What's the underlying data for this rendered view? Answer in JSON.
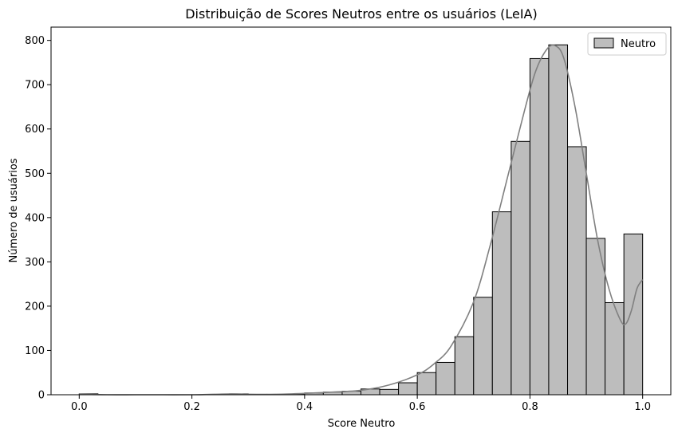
{
  "chart_data": {
    "type": "bar",
    "title": "Distribuição de Scores Neutros entre os usuários (LeIA)",
    "xlabel": "Score Neutro",
    "ylabel": "Número de usuários",
    "xlim": [
      -0.05,
      1.05
    ],
    "ylim": [
      0,
      830
    ],
    "xticks": [
      0.0,
      0.2,
      0.4,
      0.6,
      0.8,
      1.0
    ],
    "xtick_labels": [
      "0.0",
      "0.2",
      "0.4",
      "0.6",
      "0.8",
      "1.0"
    ],
    "yticks": [
      0,
      100,
      200,
      300,
      400,
      500,
      600,
      700,
      800
    ],
    "ytick_labels": [
      "0",
      "100",
      "200",
      "300",
      "400",
      "500",
      "600",
      "700",
      "800"
    ],
    "bin_edges": [
      0.0,
      0.0333,
      0.0667,
      0.1,
      0.1333,
      0.1667,
      0.2,
      0.2333,
      0.2667,
      0.3,
      0.3333,
      0.3667,
      0.4,
      0.4333,
      0.4667,
      0.5,
      0.5333,
      0.5667,
      0.6,
      0.6333,
      0.6667,
      0.7,
      0.7333,
      0.7667,
      0.8,
      0.8333,
      0.8667,
      0.9,
      0.9333,
      0.9667,
      1.0
    ],
    "counts": [
      2,
      0,
      0,
      0,
      0,
      0,
      0,
      1,
      2,
      1,
      1,
      1,
      4,
      6,
      8,
      13,
      12,
      27,
      50,
      73,
      131,
      220,
      413,
      572,
      759,
      790,
      560,
      353,
      208,
      363
    ],
    "kde": {
      "x": [
        0.0,
        0.05,
        0.1,
        0.15,
        0.2,
        0.24,
        0.27,
        0.3,
        0.35,
        0.4,
        0.45,
        0.5,
        0.55,
        0.6,
        0.63,
        0.66,
        0.7,
        0.73,
        0.76,
        0.79,
        0.81,
        0.83,
        0.845,
        0.86,
        0.88,
        0.9,
        0.92,
        0.94,
        0.96,
        0.97,
        0.98,
        0.99,
        1.0
      ],
      "y": [
        1,
        0,
        0,
        0,
        0,
        1,
        2,
        1,
        1,
        3,
        6,
        10,
        22,
        45,
        70,
        110,
        210,
        340,
        490,
        640,
        730,
        780,
        788,
        760,
        650,
        500,
        350,
        240,
        170,
        160,
        190,
        240,
        260
      ]
    },
    "legend": {
      "entries": [
        "Neutro"
      ],
      "placement": "top-right"
    },
    "colors": {
      "bar_fill": "#bdbdbd",
      "bar_edge": "#000000",
      "kde_line": "#808080",
      "axes": "#000000"
    },
    "grid": false
  }
}
